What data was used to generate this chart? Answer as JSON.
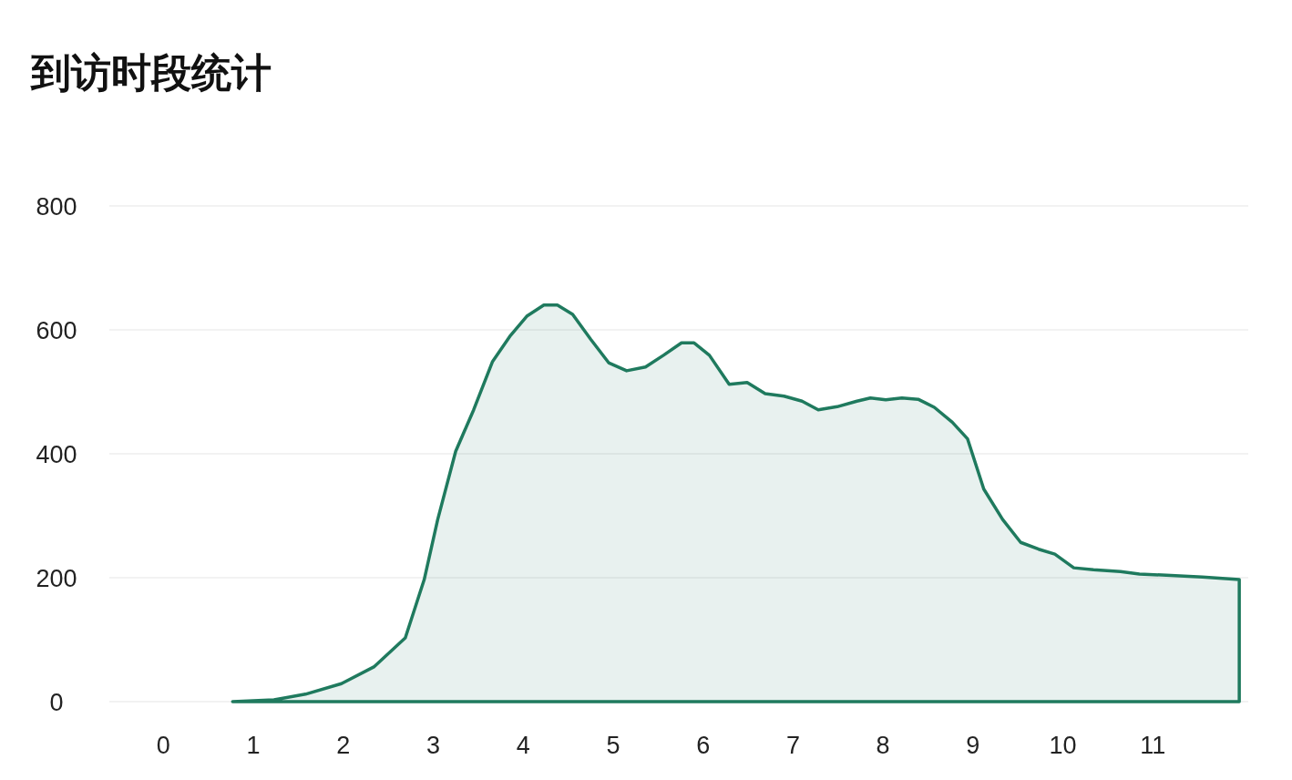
{
  "chart_data": {
    "type": "area",
    "title": "到访时段统计",
    "x": [
      0.77,
      1.23,
      1.58,
      1.98,
      2.34,
      2.69,
      2.9,
      3.05,
      3.25,
      3.45,
      3.66,
      3.86,
      4.04,
      4.23,
      4.38,
      4.55,
      4.75,
      4.95,
      5.15,
      5.36,
      5.56,
      5.76,
      5.9,
      6.07,
      6.29,
      6.49,
      6.69,
      6.9,
      7.1,
      7.28,
      7.49,
      7.71,
      7.86,
      8.03,
      8.21,
      8.39,
      8.57,
      8.77,
      8.94,
      9.12,
      9.33,
      9.53,
      9.73,
      9.91,
      10.12,
      10.34,
      10.64,
      10.85,
      11.15,
      11.55,
      11.96
    ],
    "series": [
      {
        "color": "#1f7a5e",
        "values": [
          0,
          3,
          12,
          29,
          56,
          103,
          197,
          294,
          404,
          471,
          549,
          591,
          622,
          640,
          640,
          625,
          585,
          547,
          534,
          540,
          559,
          579,
          579,
          559,
          512,
          515,
          497,
          493,
          485,
          471,
          476,
          485,
          490,
          487,
          490,
          488,
          475,
          451,
          424,
          343,
          294,
          257,
          246,
          238,
          216,
          213,
          210,
          206,
          204,
          201,
          197
        ]
      }
    ],
    "xlim": [
      -0.6,
      12.06
    ],
    "ylim": [
      0,
      800
    ],
    "xticks": [
      0,
      1,
      2,
      3,
      4,
      5,
      6,
      7,
      8,
      9,
      10,
      11
    ],
    "yticks": [
      0,
      200,
      400,
      600,
      800
    ],
    "grid": "y",
    "marker": "none",
    "line_style": "solid"
  }
}
